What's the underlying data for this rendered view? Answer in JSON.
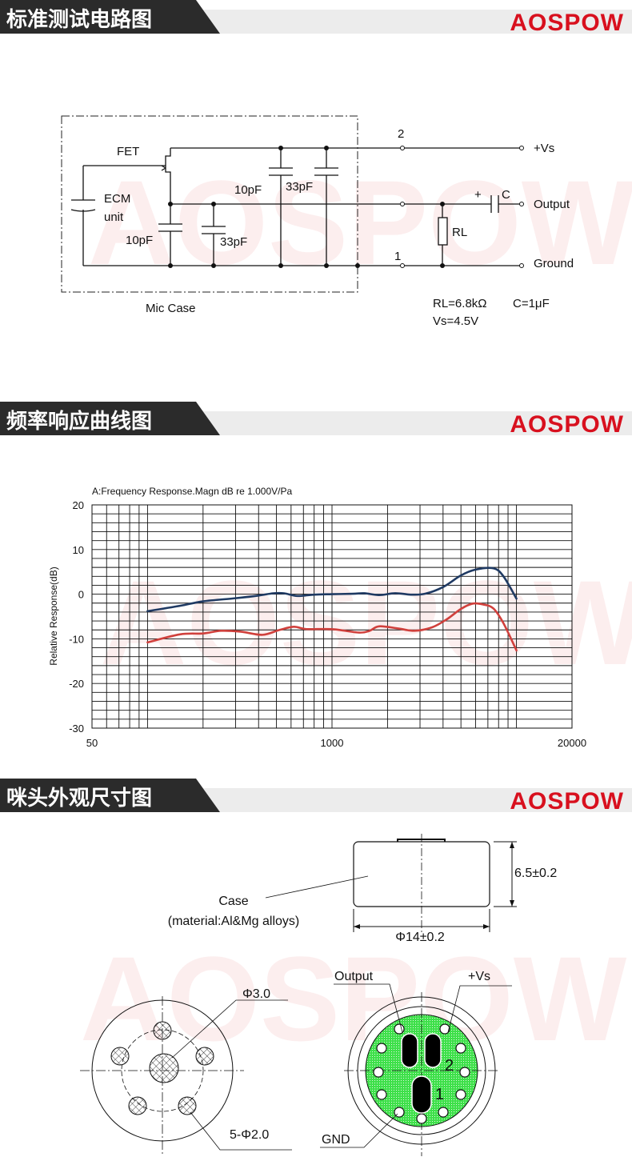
{
  "brand": {
    "logo_text": "AOSPOW",
    "color": "#d8101e"
  },
  "sections": [
    {
      "title": "标准测试电路图"
    },
    {
      "title": "频率响应曲线图"
    },
    {
      "title": "咪头外观尺寸图"
    }
  ],
  "circuit": {
    "fet_label": "FET",
    "ecm_label_1": "ECM",
    "ecm_label_2": "unit",
    "cap_inner_1": "10pF",
    "cap_inner_2": "33pF",
    "cap_top_1": "10pF",
    "cap_top_2": "33pF",
    "mic_case_label": "Mic Case",
    "terminal_2": "2",
    "terminal_1": "1",
    "vs_label": "+Vs",
    "output_label": "Output",
    "ground_label": "Ground",
    "cap_c_label": "C",
    "cap_c_polarity": "+",
    "rl_label": "RL",
    "spec_rl": "RL=6.8kΩ",
    "spec_c": "C=1μF",
    "spec_vs": "Vs=4.5V"
  },
  "chart_data": {
    "type": "line",
    "title": "A:Frequency Response.Magn dB re 1.000V/Pa",
    "xlabel": "",
    "ylabel": "Relative Response(dB)",
    "xscale": "log",
    "xlim": [
      50,
      20000
    ],
    "ylim": [
      -30,
      20
    ],
    "x_ticks": [
      "50",
      "1000",
      "20000"
    ],
    "y_ticks": [
      "20",
      "10",
      "0",
      "-10",
      "-20",
      "-30"
    ],
    "grid": true,
    "series": [
      {
        "color": "#1f3a63",
        "points": [
          [
            100,
            -3.8
          ],
          [
            150,
            -2.6
          ],
          [
            200,
            -1.6
          ],
          [
            300,
            -0.9
          ],
          [
            400,
            -0.3
          ],
          [
            480,
            0.2
          ],
          [
            550,
            0.2
          ],
          [
            650,
            -0.4
          ],
          [
            800,
            -0.1
          ],
          [
            1000,
            0
          ],
          [
            1300,
            0.1
          ],
          [
            1500,
            0.2
          ],
          [
            1800,
            -0.2
          ],
          [
            2200,
            0.2
          ],
          [
            2700,
            -0.1
          ],
          [
            3200,
            0.1
          ],
          [
            4000,
            1.6
          ],
          [
            5000,
            4.2
          ],
          [
            6000,
            5.5
          ],
          [
            7500,
            5.8
          ],
          [
            8500,
            4.0
          ],
          [
            10000,
            -1.0
          ]
        ]
      },
      {
        "color": "#d0403c",
        "points": [
          [
            100,
            -10.8
          ],
          [
            150,
            -9.0
          ],
          [
            200,
            -8.8
          ],
          [
            250,
            -8.2
          ],
          [
            320,
            -8.4
          ],
          [
            420,
            -9.1
          ],
          [
            520,
            -8.0
          ],
          [
            620,
            -7.3
          ],
          [
            720,
            -7.8
          ],
          [
            900,
            -7.8
          ],
          [
            1050,
            -7.9
          ],
          [
            1400,
            -8.6
          ],
          [
            1600,
            -8.2
          ],
          [
            1800,
            -7.2
          ],
          [
            2300,
            -7.7
          ],
          [
            2800,
            -8.2
          ],
          [
            3500,
            -7.4
          ],
          [
            4200,
            -5.6
          ],
          [
            5000,
            -3.3
          ],
          [
            5800,
            -2.1
          ],
          [
            6600,
            -2.3
          ],
          [
            7500,
            -3.2
          ],
          [
            8500,
            -6.5
          ],
          [
            10000,
            -12.6
          ]
        ]
      }
    ]
  },
  "dimensions": {
    "height": "6.5±0.2",
    "diameter": "Φ14±0.2",
    "case_label": "Case",
    "case_material": "(material:Al&Mg alloys)",
    "center_hole": "Φ3.0",
    "side_holes": "5-Φ2.0",
    "pin_output": "Output",
    "pin_vs": "+Vs",
    "pin_gnd": "GND",
    "pad_2": "2",
    "pad_1": "1",
    "pcb_color": "#3ee04a"
  }
}
